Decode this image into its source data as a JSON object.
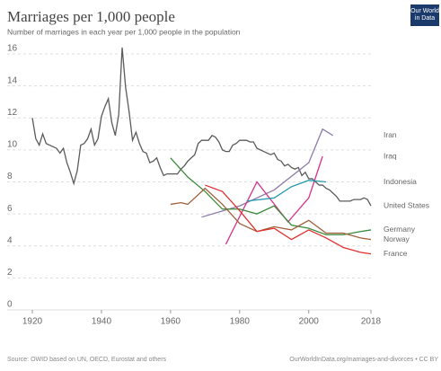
{
  "chart_data": {
    "type": "line",
    "title": "Marriages per 1,000 people",
    "subtitle": "Number of marriages in each year per 1,000 people in the population",
    "source": "Source: OWID based on UN, OECD, Eurostat and others",
    "url": "OurWorldInData.org/marriages-and-divorces • CC BY",
    "logo": "Our World in Data",
    "xlim": [
      1920,
      2018
    ],
    "xticks": [
      1920,
      1940,
      1960,
      1980,
      2000,
      2018
    ],
    "ylim": [
      0,
      16
    ],
    "yticks": [
      0,
      2,
      4,
      6,
      8,
      10,
      12,
      14,
      16
    ],
    "grid": true,
    "series": [
      {
        "name": "United States",
        "color": "#5b5b5b",
        "x": [
          1920,
          1921,
          1922,
          1923,
          1924,
          1925,
          1926,
          1927,
          1928,
          1929,
          1930,
          1931,
          1932,
          1933,
          1934,
          1935,
          1936,
          1937,
          1938,
          1939,
          1940,
          1941,
          1942,
          1943,
          1944,
          1945,
          1946,
          1947,
          1948,
          1949,
          1950,
          1951,
          1952,
          1953,
          1954,
          1955,
          1956,
          1957,
          1958,
          1959,
          1960,
          1961,
          1962,
          1963,
          1964,
          1965,
          1966,
          1967,
          1968,
          1969,
          1970,
          1971,
          1972,
          1973,
          1974,
          1975,
          1976,
          1977,
          1978,
          1979,
          1980,
          1981,
          1982,
          1983,
          1984,
          1985,
          1986,
          1987,
          1988,
          1989,
          1990,
          1991,
          1992,
          1993,
          1994,
          1995,
          1996,
          1997,
          1998,
          1999,
          2000,
          2001,
          2002,
          2003,
          2004,
          2005,
          2006,
          2007,
          2008,
          2009,
          2010,
          2011,
          2012,
          2013,
          2014,
          2015,
          2016,
          2017,
          2018
        ],
        "values": [
          12.0,
          10.7,
          10.3,
          11.0,
          10.4,
          10.3,
          10.2,
          10.1,
          9.8,
          10.1,
          9.2,
          8.6,
          7.9,
          8.7,
          10.3,
          10.4,
          10.7,
          11.3,
          10.3,
          10.7,
          12.1,
          12.7,
          13.2,
          11.7,
          10.9,
          12.2,
          16.4,
          13.9,
          12.4,
          10.6,
          11.1,
          10.4,
          9.9,
          9.8,
          9.2,
          9.3,
          9.5,
          8.9,
          8.4,
          8.5,
          8.5,
          8.5,
          8.5,
          8.8,
          9.0,
          9.3,
          9.5,
          9.7,
          10.4,
          10.6,
          10.6,
          10.6,
          10.9,
          10.8,
          10.5,
          10.0,
          9.9,
          9.9,
          10.3,
          10.4,
          10.6,
          10.6,
          10.6,
          10.5,
          10.5,
          10.1,
          10.0,
          9.9,
          9.8,
          9.7,
          9.8,
          9.4,
          9.3,
          9.0,
          9.1,
          8.9,
          8.8,
          8.9,
          8.4,
          8.6,
          8.2,
          8.2,
          8.0,
          7.8,
          7.8,
          7.6,
          7.5,
          7.3,
          7.1,
          6.8,
          6.8,
          6.8,
          6.8,
          6.9,
          6.9,
          6.9,
          7.0,
          6.9,
          6.5
        ]
      },
      {
        "name": "Iran",
        "color": "#8c7ba8",
        "x": [
          1969,
          1980,
          1990,
          2000,
          2004,
          2007
        ],
        "values": [
          5.8,
          6.5,
          7.5,
          9.2,
          11.3,
          10.9
        ]
      },
      {
        "name": "Iraq",
        "color": "#d6328a",
        "x": [
          1976,
          1985,
          1994,
          2000,
          2004
        ],
        "values": [
          4.1,
          8.0,
          5.5,
          7.0,
          9.6
        ]
      },
      {
        "name": "Indonesia",
        "color": "#2a9bb0",
        "x": [
          1982,
          1990,
          1995,
          2000,
          2005
        ],
        "values": [
          6.8,
          7.0,
          7.7,
          8.1,
          8.0
        ]
      },
      {
        "name": "Germany",
        "color": "#3a8a3a",
        "x": [
          1960,
          1965,
          1970,
          1975,
          1980,
          1985,
          1990,
          1995,
          2000,
          2005,
          2010,
          2015,
          2018
        ],
        "values": [
          9.5,
          8.3,
          7.4,
          6.3,
          6.3,
          6.0,
          6.5,
          5.3,
          5.1,
          4.7,
          4.7,
          4.9,
          5.0
        ]
      },
      {
        "name": "Norway",
        "color": "#a0603a",
        "x": [
          1960,
          1963,
          1965,
          1970,
          1975,
          1980,
          1985,
          1990,
          1995,
          2000,
          2005,
          2010,
          2015,
          2018
        ],
        "values": [
          6.6,
          6.7,
          6.6,
          7.6,
          6.6,
          5.4,
          4.9,
          5.2,
          5.0,
          5.6,
          4.8,
          4.8,
          4.5,
          4.4
        ]
      },
      {
        "name": "France",
        "color": "#e03030",
        "x": [
          1970,
          1975,
          1980,
          1985,
          1990,
          1995,
          2000,
          2005,
          2010,
          2015,
          2018
        ],
        "values": [
          7.8,
          7.4,
          6.2,
          4.9,
          5.1,
          4.4,
          5.0,
          4.5,
          3.9,
          3.6,
          3.5
        ]
      }
    ]
  }
}
